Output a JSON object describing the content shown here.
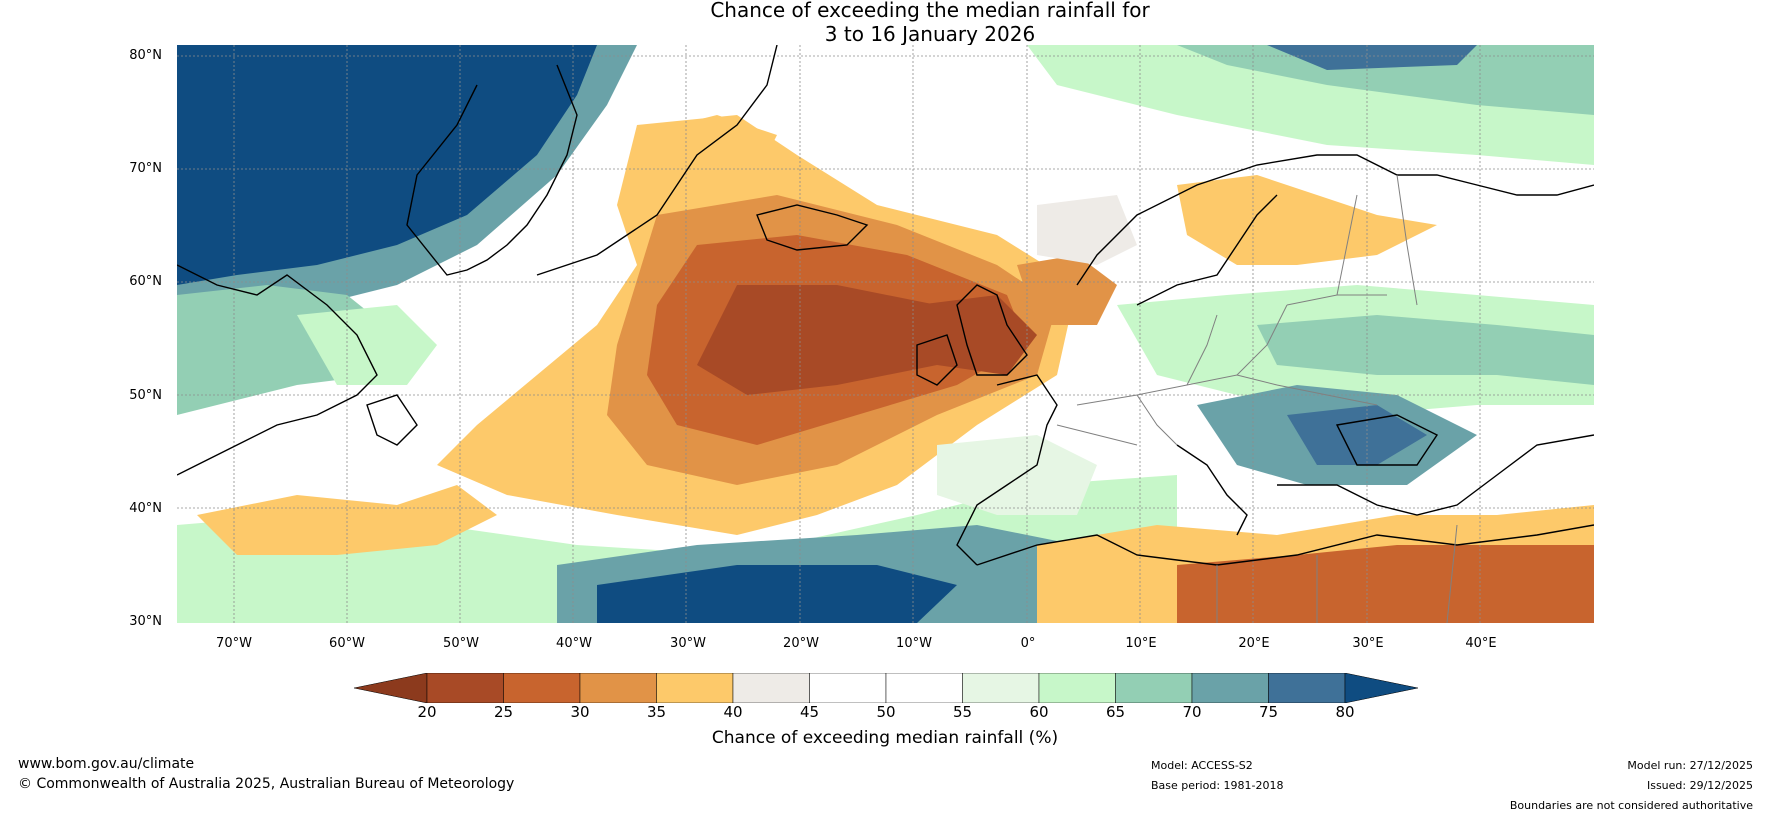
{
  "title": {
    "line1": "Chance of exceeding the median rainfall for",
    "line2": "3 to 16 January 2026"
  },
  "map": {
    "region": "North Atlantic and Europe",
    "latitude_labels": [
      "80°N",
      "70°N",
      "60°N",
      "50°N",
      "40°N",
      "30°N"
    ],
    "longitude_labels": [
      "70°W",
      "60°W",
      "50°W",
      "40°W",
      "30°W",
      "20°W",
      "10°W",
      "0°",
      "10°E",
      "20°E",
      "30°E",
      "40°E"
    ],
    "lat_range": [
      30,
      81
    ],
    "lon_range": [
      -75,
      50
    ]
  },
  "colorbar": {
    "label": "Chance of exceeding median rainfall (%)",
    "ticks": [
      "20",
      "25",
      "30",
      "35",
      "40",
      "45",
      "50",
      "55",
      "60",
      "65",
      "70",
      "75",
      "80"
    ],
    "under_color": "#8c3a1d",
    "over_color": "#0f4c81",
    "bin_colors": [
      "#a84a26",
      "#c8642e",
      "#e19347",
      "#fdc96a",
      "#eeebe7",
      "#ffffff",
      "#ffffff",
      "#e6f6e4",
      "#c7f7c9",
      "#93cfb4",
      "#6aa2a8",
      "#3f7198"
    ]
  },
  "footer": {
    "website": "www.bom.gov.au/climate",
    "copyright": "© Commonwealth of Australia 2025, Australian Bureau of Meteorology",
    "model": "Model: ACCESS-S2",
    "base_period": "Base period: 1981-2018",
    "model_run": "Model run: 27/12/2025",
    "issued": "Issued: 29/12/2025",
    "disclaimer": "Boundaries are not considered authoritative"
  },
  "colors": {
    "very_dry": "#a84a26",
    "dry": "#c8642e",
    "mod_dry": "#e19347",
    "slight_dry": "#fdc96a",
    "neutral_dry": "#eeebe7",
    "neutral": "#ffffff",
    "slight_wet": "#e6f6e4",
    "mod_wet": "#c7f7c9",
    "wet": "#93cfb4",
    "very_wet": "#6aa2a8",
    "wettest": "#3f7198",
    "deep_wet": "#0f4c81"
  }
}
